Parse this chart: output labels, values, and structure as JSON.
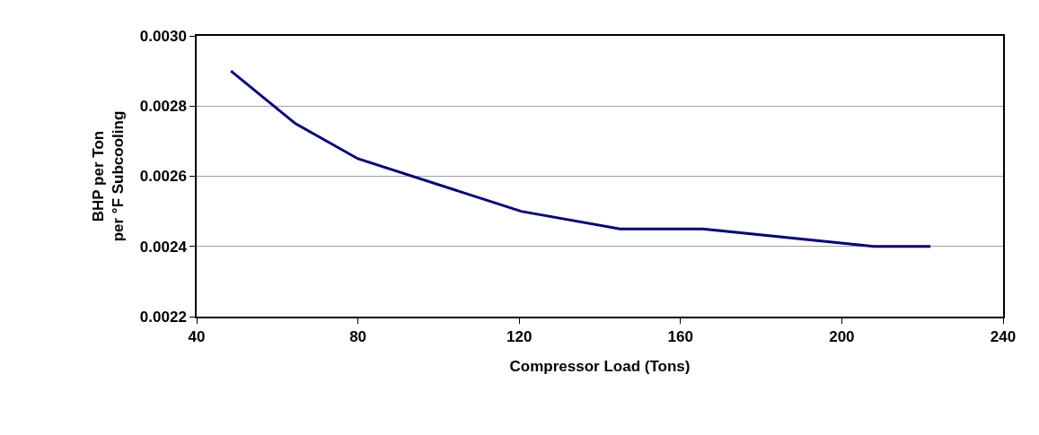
{
  "chart_data": {
    "type": "line",
    "xlabel": "Compressor Load (Tons)",
    "ylabel": "BHP per Ton\nper °F Subcooling",
    "x": [
      48.5,
      64.5,
      80,
      120.5,
      145,
      165.5,
      208,
      222
    ],
    "series": [
      {
        "color": "#000080",
        "values": [
          0.0029,
          0.00275,
          0.00265,
          0.0025,
          0.00245,
          0.00245,
          0.0024,
          0.0024
        ]
      }
    ],
    "xlim": [
      40,
      240
    ],
    "xticks": [
      40,
      80,
      120,
      160,
      200,
      240
    ],
    "ylim": [
      0.0022,
      0.003
    ],
    "yticks": [
      {
        "value": 0.0022,
        "label": "0.0022"
      },
      {
        "value": 0.0024,
        "label": "0.0024"
      },
      {
        "value": 0.0026,
        "label": "0.0026"
      },
      {
        "value": 0.0028,
        "label": "0.0028"
      },
      {
        "value": 0.003,
        "label": "0.0030"
      }
    ],
    "grid": "y",
    "marker": "none",
    "line_style": "solid"
  }
}
